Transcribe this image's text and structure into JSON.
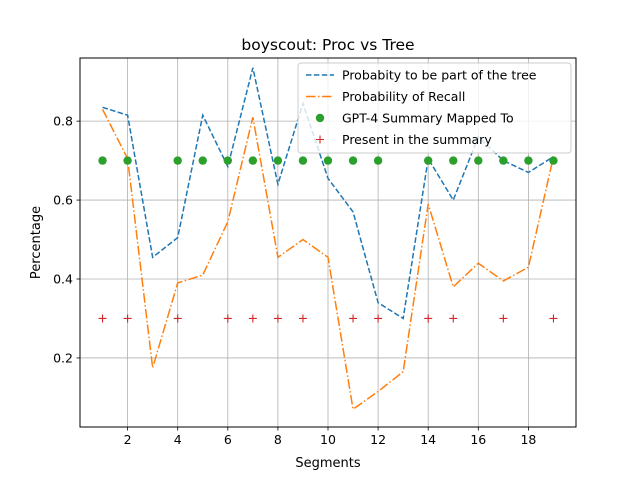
{
  "chart_data": {
    "type": "line",
    "title": "boyscout: Proc vs Tree",
    "xlabel": "Segments",
    "ylabel": "Percentage",
    "xlim": [
      0.1,
      19.9
    ],
    "ylim": [
      0.025,
      0.96
    ],
    "xticks": [
      2,
      4,
      6,
      8,
      10,
      12,
      14,
      16,
      18
    ],
    "yticks": [
      0.2,
      0.4,
      0.6,
      0.8
    ],
    "grid": "vertical and horizontal at ticks",
    "legend_position": "top-right",
    "x": [
      1,
      2,
      3,
      4,
      5,
      6,
      7,
      8,
      9,
      10,
      11,
      12,
      13,
      14,
      15,
      16,
      17,
      18,
      19
    ],
    "series": [
      {
        "name": "Probabity to be part of the tree",
        "style": "dashed",
        "color": "#1f77b4",
        "values": [
          0.835,
          0.815,
          0.455,
          0.505,
          0.815,
          0.685,
          0.935,
          0.64,
          0.845,
          0.655,
          0.57,
          0.34,
          0.3,
          0.705,
          0.6,
          0.76,
          0.7,
          0.67,
          0.71
        ]
      },
      {
        "name": "Probability of Recall",
        "style": "dashdot",
        "color": "#ff7f0e",
        "values": [
          0.83,
          0.705,
          0.175,
          0.39,
          0.41,
          0.545,
          0.81,
          0.455,
          0.5,
          0.455,
          0.07,
          0.115,
          0.165,
          0.59,
          0.38,
          0.44,
          0.395,
          0.43,
          0.71
        ]
      },
      {
        "name": "GPT-4 Summary Mapped To",
        "style": "markers-circle",
        "color": "#2ca02c",
        "x": [
          1,
          2,
          4,
          5,
          6,
          7,
          8,
          9,
          10,
          11,
          12,
          14,
          15,
          16,
          17,
          18,
          19
        ],
        "values": [
          0.7,
          0.7,
          0.7,
          0.7,
          0.7,
          0.7,
          0.7,
          0.7,
          0.7,
          0.7,
          0.7,
          0.7,
          0.7,
          0.7,
          0.7,
          0.7,
          0.7
        ]
      },
      {
        "name": "Present in the summary",
        "style": "markers-plus",
        "color": "#d62728",
        "x": [
          1,
          2,
          4,
          6,
          7,
          8,
          9,
          11,
          12,
          14,
          15,
          17,
          19
        ],
        "values": [
          0.3,
          0.3,
          0.3,
          0.3,
          0.3,
          0.3,
          0.3,
          0.3,
          0.3,
          0.3,
          0.3,
          0.3,
          0.3
        ]
      }
    ]
  }
}
